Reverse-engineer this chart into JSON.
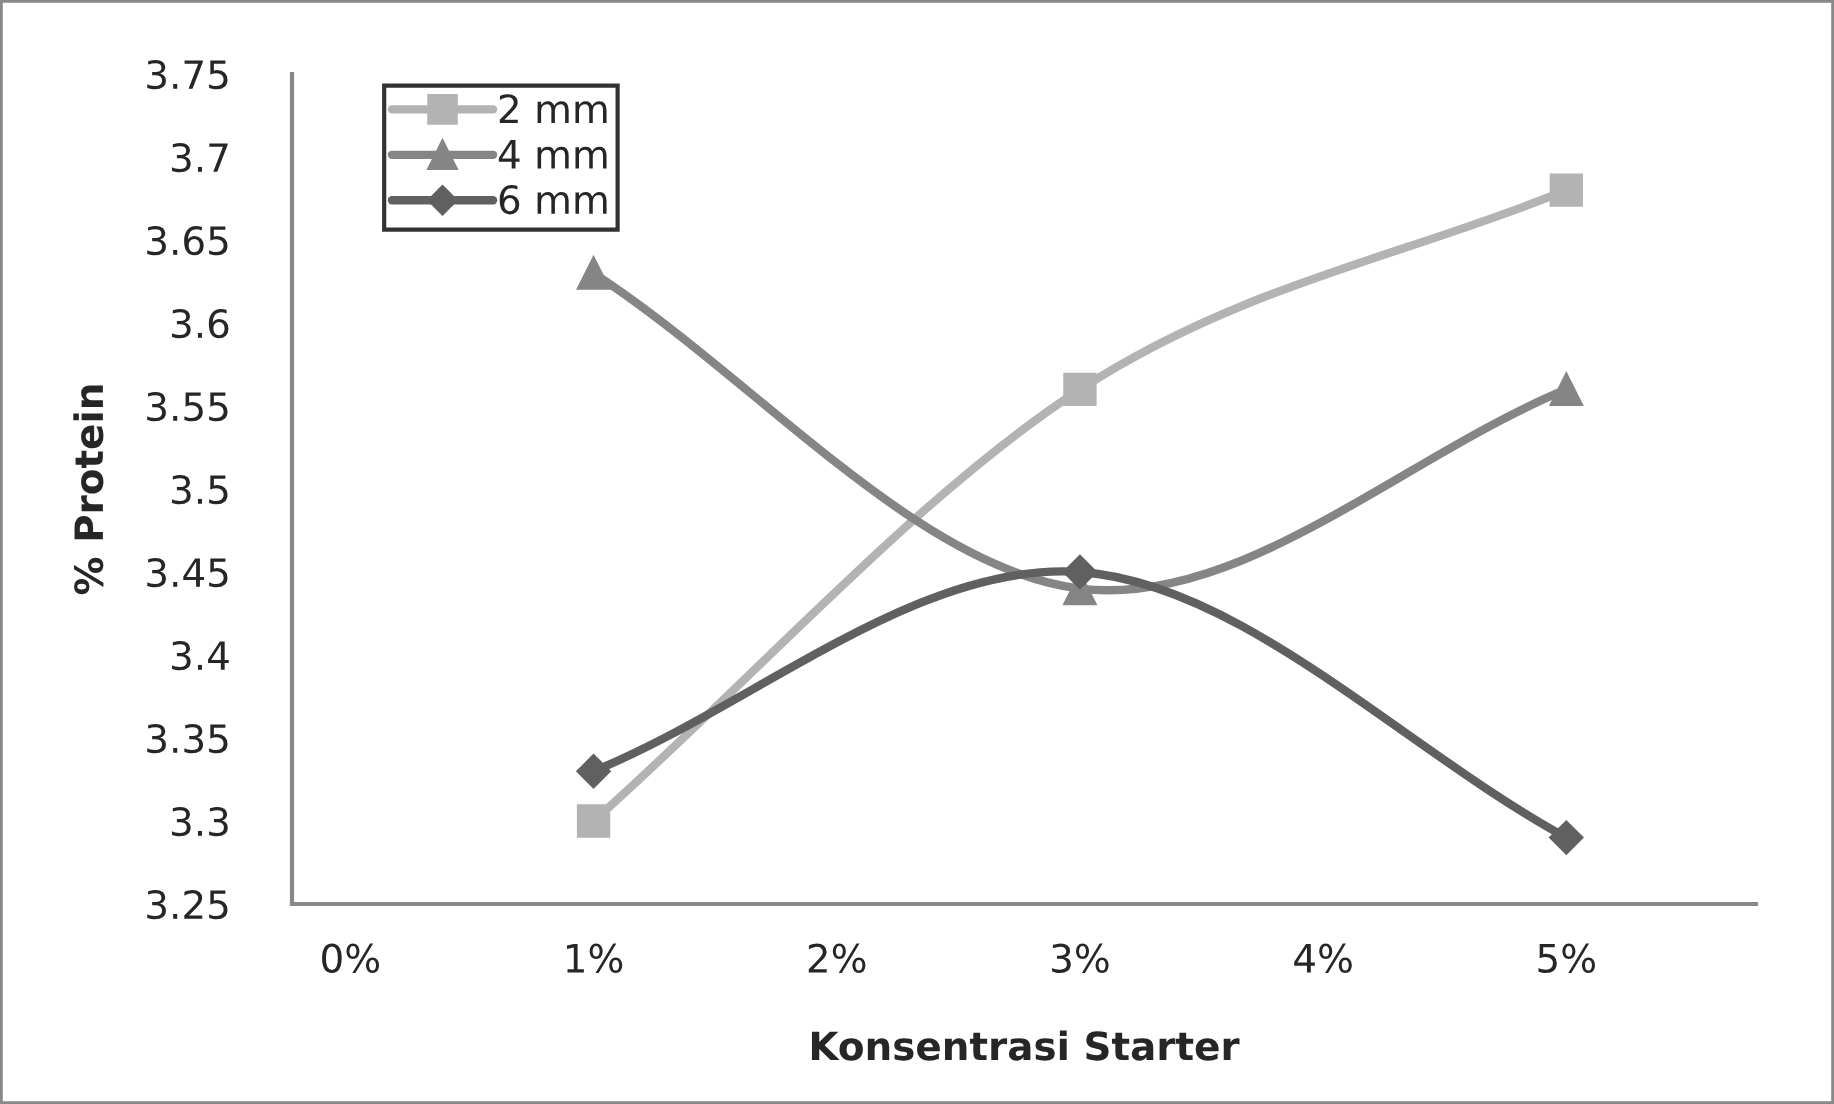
{
  "chart_data": {
    "type": "line",
    "xlabel": "Konsentrasi Starter",
    "ylabel": "% Protein",
    "x": [
      1,
      3,
      5
    ],
    "series": [
      {
        "name": "2 mm",
        "color": "#b3b3b3",
        "marker": "square",
        "values": [
          3.3,
          3.56,
          3.68
        ]
      },
      {
        "name": "4 mm",
        "color": "#858585",
        "marker": "triangle",
        "values": [
          3.63,
          3.44,
          3.56
        ]
      },
      {
        "name": "6 mm",
        "color": "#606060",
        "marker": "diamond",
        "values": [
          3.33,
          3.45,
          3.29
        ]
      }
    ],
    "xlim": [
      -0.24,
      5.78
    ],
    "xticks": [
      {
        "value": 0,
        "label": "0%"
      },
      {
        "value": 1,
        "label": "1%"
      },
      {
        "value": 2,
        "label": "2%"
      },
      {
        "value": 3,
        "label": "3%"
      },
      {
        "value": 4,
        "label": "4%"
      },
      {
        "value": 5,
        "label": "5%"
      }
    ],
    "ylim": [
      3.25,
      3.75
    ],
    "yticks": [
      3.25,
      3.3,
      3.35,
      3.4,
      3.45,
      3.5,
      3.55,
      3.6,
      3.65,
      3.7,
      3.75
    ],
    "grid": false,
    "legend": "top left",
    "line_style": "solid"
  }
}
